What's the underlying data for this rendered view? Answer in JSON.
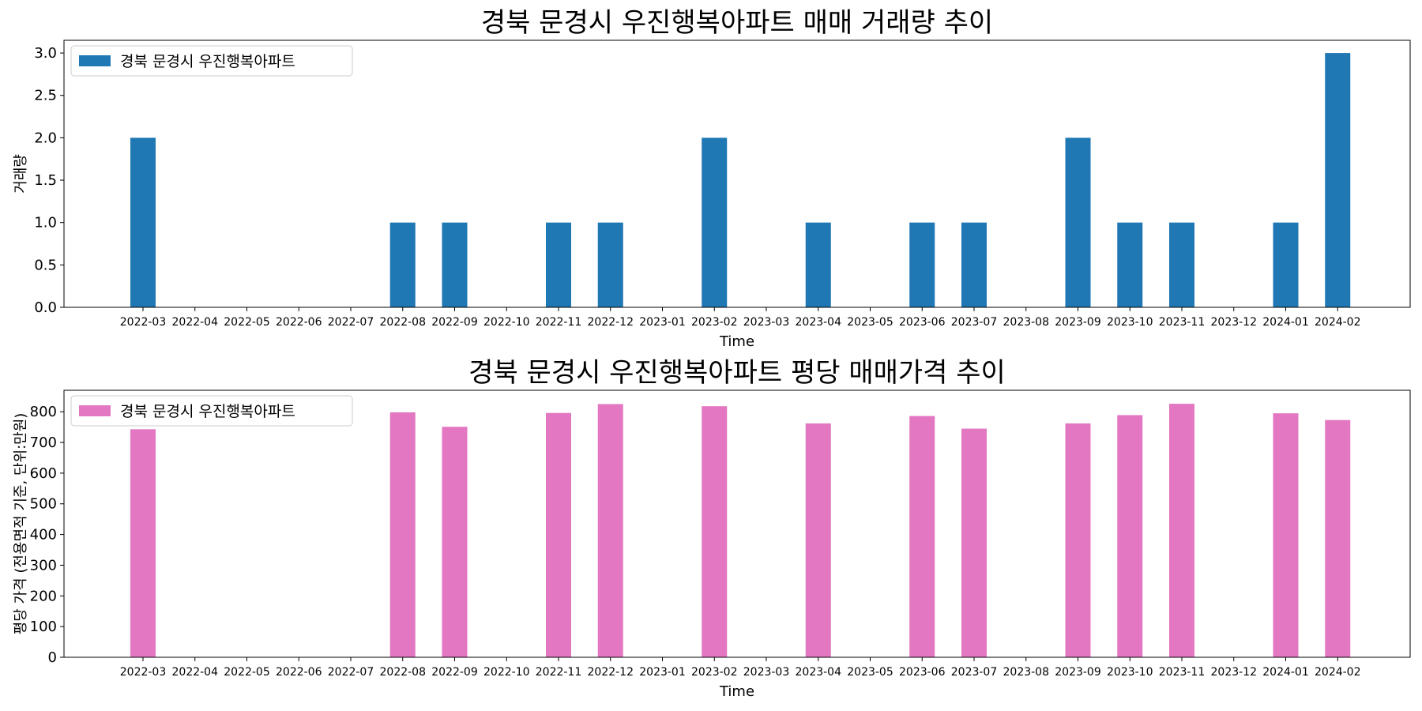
{
  "chart_data": [
    {
      "type": "bar",
      "title": "경북 문경시 우진행복아파트 매매 거래량 추이",
      "xlabel": "Time",
      "ylabel": "거래량",
      "ylim": [
        0,
        3.15
      ],
      "yticks": [
        "0.0",
        "0.5",
        "1.0",
        "1.5",
        "2.0",
        "2.5",
        "3.0"
      ],
      "ytick_values": [
        0,
        0.5,
        1.0,
        1.5,
        2.0,
        2.5,
        3.0
      ],
      "legend_placement": "top-left",
      "grid": false,
      "categories": [
        "2022-03",
        "2022-04",
        "2022-05",
        "2022-06",
        "2022-07",
        "2022-08",
        "2022-09",
        "2022-10",
        "2022-11",
        "2022-12",
        "2023-01",
        "2023-02",
        "2023-03",
        "2023-04",
        "2023-05",
        "2023-06",
        "2023-07",
        "2023-08",
        "2023-09",
        "2023-10",
        "2023-11",
        "2023-12",
        "2024-01",
        "2024-02"
      ],
      "series": [
        {
          "name": "경북 문경시 우진행복아파트",
          "color": "#1f77b4",
          "values": [
            2,
            0,
            0,
            0,
            0,
            1,
            1,
            0,
            1,
            1,
            0,
            2,
            0,
            1,
            0,
            1,
            1,
            0,
            2,
            1,
            1,
            0,
            1,
            3
          ]
        }
      ]
    },
    {
      "type": "bar",
      "title": "경북 문경시 우진행복아파트 평당 매매가격 추이",
      "xlabel": "Time",
      "ylabel": "평당 가격 (전용면적 기준, 단위:만원)",
      "ylim": [
        0,
        870
      ],
      "yticks": [
        "0",
        "100",
        "200",
        "300",
        "400",
        "500",
        "600",
        "700",
        "800"
      ],
      "ytick_values": [
        0,
        100,
        200,
        300,
        400,
        500,
        600,
        700,
        800
      ],
      "legend_placement": "top-left",
      "grid": false,
      "categories": [
        "2022-03",
        "2022-04",
        "2022-05",
        "2022-06",
        "2022-07",
        "2022-08",
        "2022-09",
        "2022-10",
        "2022-11",
        "2022-12",
        "2023-01",
        "2023-02",
        "2023-03",
        "2023-04",
        "2023-05",
        "2023-06",
        "2023-07",
        "2023-08",
        "2023-09",
        "2023-10",
        "2023-11",
        "2023-12",
        "2024-01",
        "2024-02"
      ],
      "series": [
        {
          "name": "경북 문경시 우진행복아파트",
          "color": "#e377c2",
          "values": [
            743,
            0,
            0,
            0,
            0,
            798,
            751,
            0,
            796,
            825,
            0,
            818,
            0,
            762,
            0,
            786,
            745,
            0,
            762,
            789,
            826,
            0,
            795,
            773
          ]
        }
      ]
    }
  ]
}
